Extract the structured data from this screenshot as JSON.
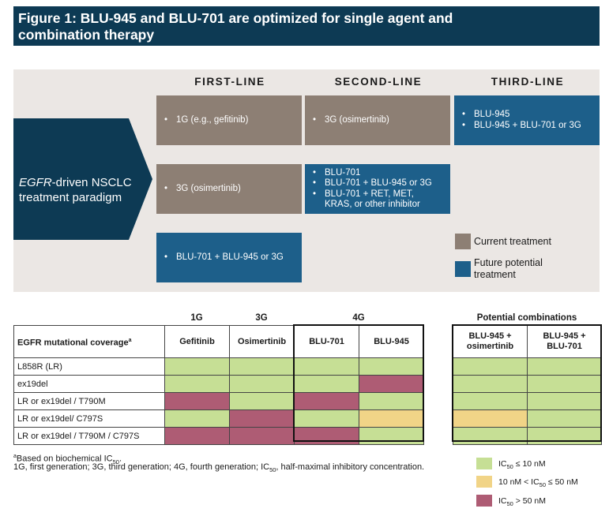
{
  "header": {
    "title_line1": "Figure 1: BLU-945 and BLU-701 are optimized for single agent and",
    "title_line2": "combination therapy"
  },
  "paradigm": {
    "arrow_label_em": "EGFR",
    "arrow_label_rest1": "-driven NSCLC",
    "arrow_label_line2": "treatment paradigm",
    "columns": [
      "FIRST-LINE",
      "SECOND-LINE",
      "THIRD-LINE"
    ],
    "boxes": {
      "r1_first": [
        "1G (e.g., gefitinib)"
      ],
      "r1_second": [
        "3G (osimertinib)"
      ],
      "r1_third": [
        "BLU-945",
        "BLU-945 + BLU-701 or 3G"
      ],
      "r2_first": [
        "3G (osimertinib)"
      ],
      "r2_second": [
        "BLU-701",
        "BLU-701 + BLU-945 or 3G",
        "BLU-701 + RET, MET,",
        "KRAS, or other inhibitor"
      ],
      "r3_first": [
        "BLU-701 + BLU-945 or 3G"
      ]
    },
    "legend": {
      "current": "Current treatment",
      "future_line1": "Future potential",
      "future_line2": "treatment",
      "current_color": "#8d7f74",
      "future_color": "#1d5f8a"
    }
  },
  "table": {
    "group_labels": {
      "g1": "1G",
      "g3": "3G",
      "g4": "4G",
      "combos": "Potential combinations"
    },
    "header_label": "EGFR mutational coverage",
    "header_sup": "a",
    "columns": [
      "Gefitinib",
      "Osimertinib",
      "BLU-701",
      "BLU-945"
    ],
    "combo_columns": [
      {
        "line1": "BLU-945 +",
        "line2": "osimertinib"
      },
      {
        "line1": "BLU-945 +",
        "line2": "BLU-701"
      }
    ],
    "rows": [
      {
        "label": "L858R (LR)",
        "cells": [
          "g",
          "g",
          "g",
          "g"
        ],
        "combo": [
          "g",
          "g"
        ]
      },
      {
        "label": "ex19del",
        "cells": [
          "g",
          "g",
          "g",
          "r"
        ],
        "combo": [
          "g",
          "g"
        ]
      },
      {
        "label": "LR or ex19del / T790M",
        "cells": [
          "r",
          "g",
          "r",
          "g"
        ],
        "combo": [
          "g",
          "g"
        ]
      },
      {
        "label": "LR or ex19del/ C797S",
        "cells": [
          "g",
          "r",
          "g",
          "y"
        ],
        "combo": [
          "y",
          "g"
        ]
      },
      {
        "label": "LR or ex19del / T790M / C797S",
        "cells": [
          "r",
          "r",
          "r",
          "g"
        ],
        "combo": [
          "g",
          "g"
        ]
      }
    ],
    "colors": {
      "green": "#c6df95",
      "yellow": "#f1d487",
      "red": "#ae5c74"
    }
  },
  "footnotes": {
    "note_a_sup": "a",
    "note_a_text": "Based on biochemical IC",
    "note_a_sub": "50",
    "note_a_end": ".",
    "abbrev_text": "1G, first generation; 3G, third generation; 4G, fourth generation; IC",
    "abbrev_sub": "50",
    "abbrev_end": ", half-maximal inhibitory concentration."
  },
  "table_legend": {
    "green": {
      "pre": "IC",
      "sub": "50",
      "post": " ≤ 10 nM"
    },
    "yellow": {
      "pre": "10 nM < IC",
      "sub": "50",
      "post": " ≤ 50 nM"
    },
    "red": {
      "pre": "IC",
      "sub": "50",
      "post": " > 50 nM"
    }
  }
}
